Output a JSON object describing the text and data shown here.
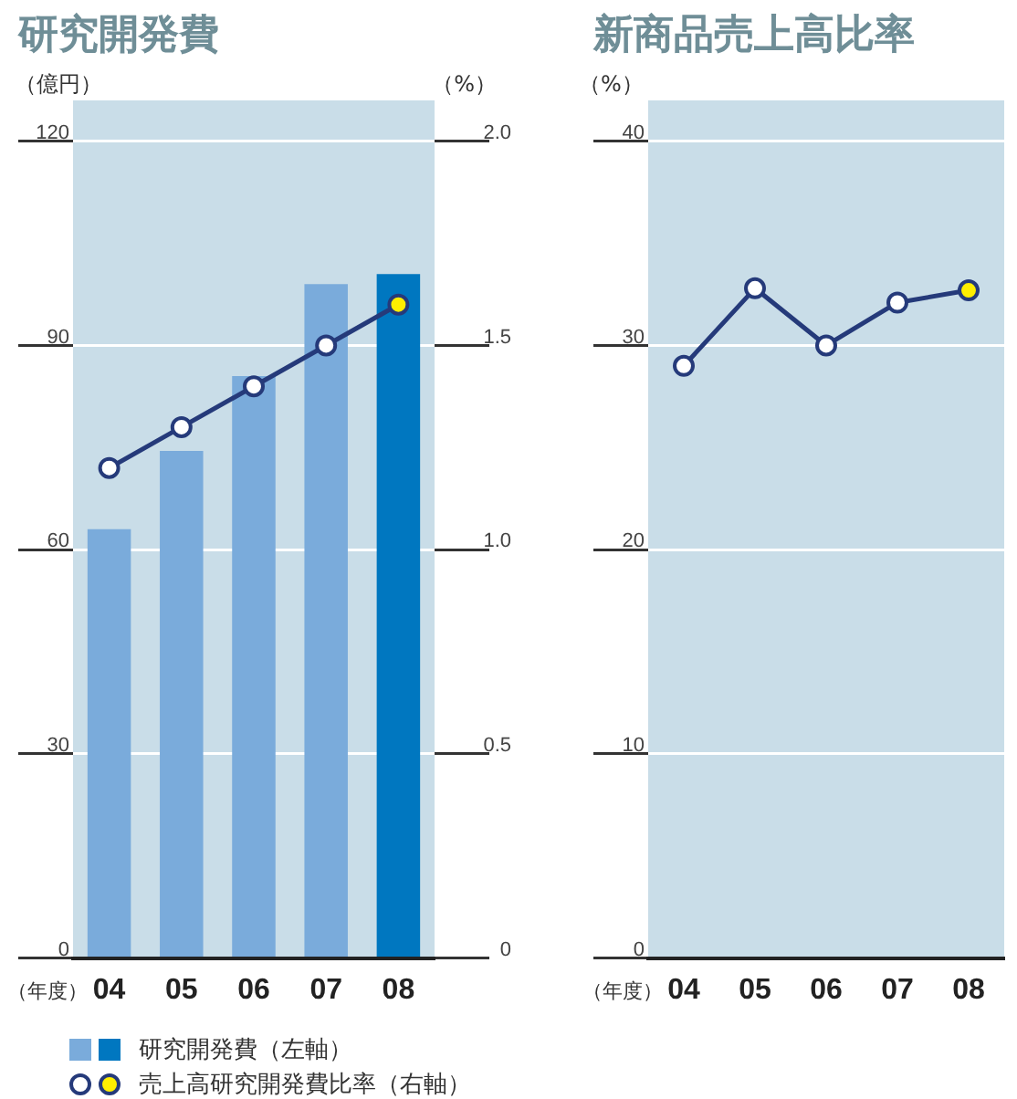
{
  "chart_data": [
    {
      "type": "bar",
      "title": "研究開発費",
      "ylabel": "（億円）",
      "y2label": "（%）",
      "xlabel": "（年度）",
      "categories": [
        "04",
        "05",
        "06",
        "07",
        "08"
      ],
      "series": [
        {
          "name": "研究開発費（左軸）",
          "colors": [
            "#7aabdb",
            "#7aabdb",
            "#7aabdb",
            "#7aabdb",
            "#0077c0"
          ],
          "values": [
            63,
            74.5,
            85.5,
            99,
            100.5
          ]
        },
        {
          "type": "line",
          "name": "売上高研究開発費比率（右軸）",
          "axis": "y2",
          "color": "#253a7a",
          "colors": [
            "#ffffff",
            "#ffffff",
            "#ffffff",
            "#ffffff",
            "#ffee00"
          ],
          "values": [
            1.2,
            1.3,
            1.4,
            1.5,
            1.6
          ]
        }
      ],
      "ylim": [
        0,
        126
      ],
      "yticks": [
        0,
        30,
        60,
        90,
        120
      ],
      "y2lim": [
        0,
        2.1
      ],
      "y2ticks": [
        {
          "value": 0,
          "label": "0"
        },
        {
          "value": 0.5,
          "label": "0.5"
        },
        {
          "value": 1,
          "label": "1.0"
        },
        {
          "value": 1.5,
          "label": "1.5"
        },
        {
          "value": 2,
          "label": "2.0"
        }
      ],
      "grid": "y",
      "legend": "bottom",
      "marker": "circle",
      "line_style": "solid"
    },
    {
      "type": "line",
      "title": "新商品売上高比率",
      "ylabel": "（%）",
      "xlabel": "（年度）",
      "categories": [
        "04",
        "05",
        "06",
        "07",
        "08"
      ],
      "series": [
        {
          "color": "#253a7a",
          "colors": [
            "#ffffff",
            "#ffffff",
            "#ffffff",
            "#ffffff",
            "#ffee00"
          ],
          "values": [
            29,
            32.8,
            30,
            32.1,
            32.7
          ]
        }
      ],
      "ylim": [
        0,
        42
      ],
      "yticks": [
        0,
        10,
        20,
        30,
        40
      ],
      "grid": "y",
      "legend": false,
      "marker": "circle",
      "line_style": "solid"
    }
  ]
}
